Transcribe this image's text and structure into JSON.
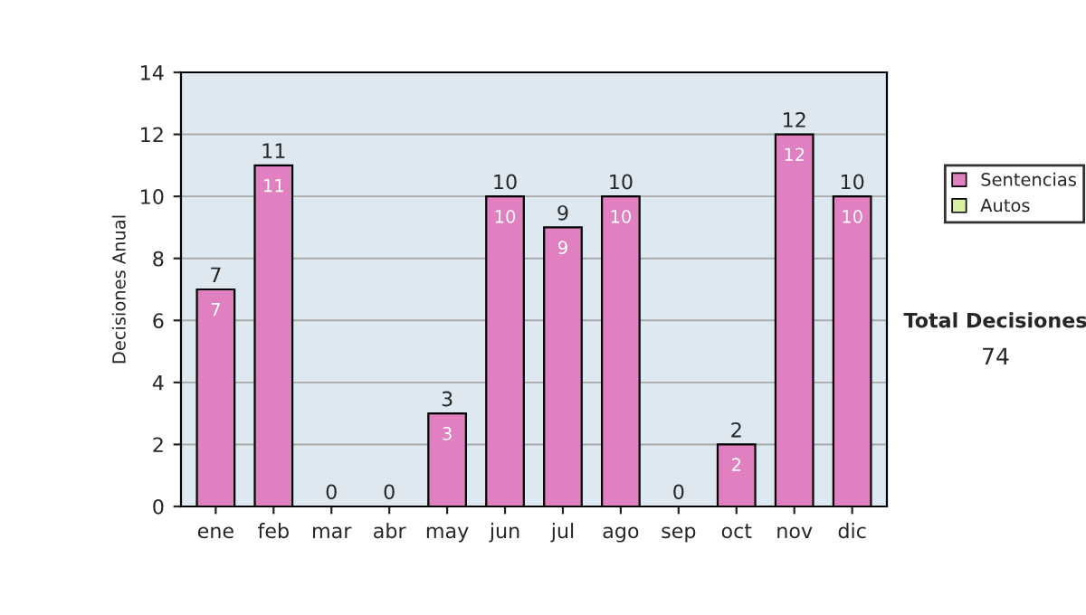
{
  "chart_data": {
    "type": "bar",
    "stacked": true,
    "categories": [
      "ene",
      "feb",
      "mar",
      "abr",
      "may",
      "jun",
      "jul",
      "ago",
      "sep",
      "oct",
      "nov",
      "dic"
    ],
    "series": [
      {
        "name": "Sentencias",
        "color": "#e080c0",
        "values": [
          7,
          11,
          0,
          0,
          3,
          10,
          9,
          10,
          0,
          2,
          12,
          10
        ],
        "value_labels": [
          "7",
          "11",
          null,
          null,
          "3",
          "10",
          "9",
          "10",
          null,
          "2",
          "12",
          "10"
        ]
      },
      {
        "name": "Autos",
        "color": "#d8f0a0",
        "values": [
          0,
          0,
          0,
          0,
          0,
          0,
          0,
          0,
          0,
          0,
          0,
          0
        ]
      }
    ],
    "totals": [
      "7",
      "11",
      "0",
      "0",
      "3",
      "10",
      "9",
      "10",
      "0",
      "2",
      "12",
      "10"
    ],
    "ylabel": "Decisiones Anual",
    "ylim": [
      0,
      14
    ],
    "yticks": [
      0,
      2,
      4,
      6,
      8,
      10,
      12,
      14
    ],
    "grid": "y",
    "legend": "right",
    "annotations": [
      "Total Decisiones",
      "74"
    ]
  }
}
